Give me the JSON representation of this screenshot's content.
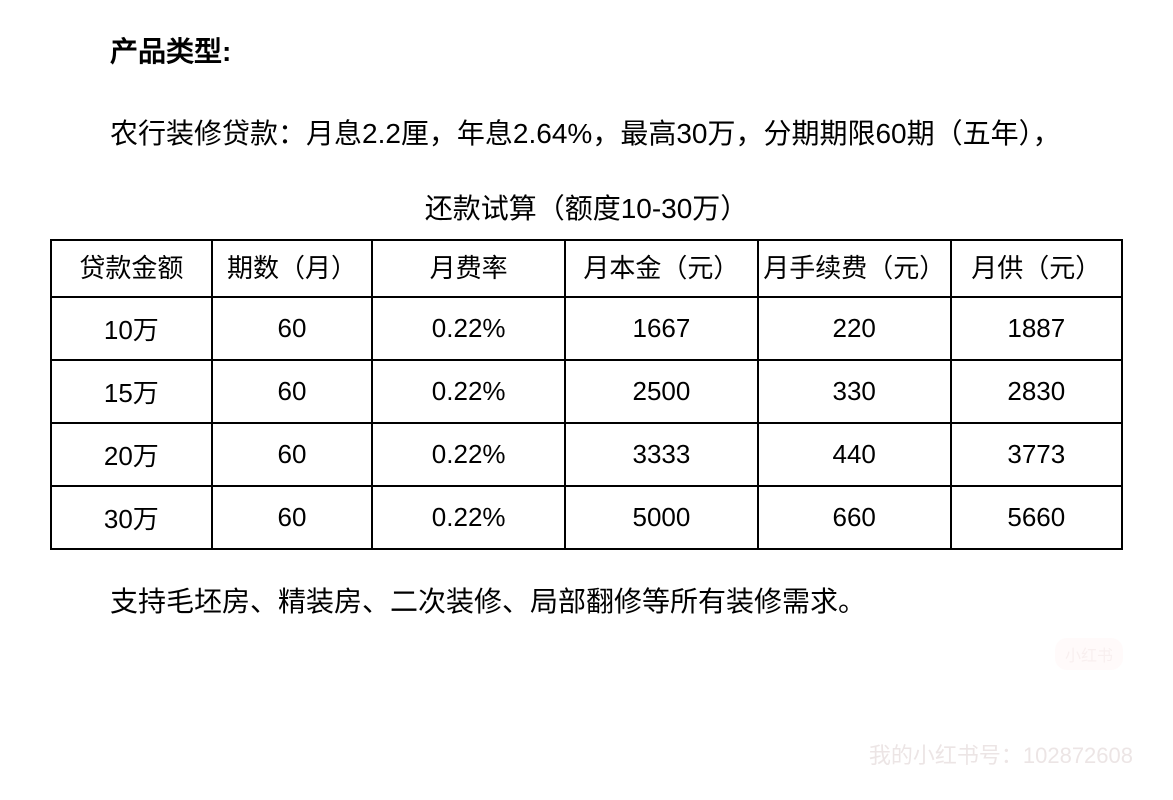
{
  "heading": "产品类型:",
  "body": "农行装修贷款：月息2.2厘，年息2.64%，最高30万，分期期限60期（五年），",
  "table": {
    "title": "还款试算（额度10-30万）",
    "columns": [
      "贷款金额",
      "期数（月）",
      "月费率",
      "月本金（元）",
      "月手续费（元）",
      "月供（元）"
    ],
    "rows": [
      [
        "10万",
        "60",
        "0.22%",
        "1667",
        "220",
        "1887"
      ],
      [
        "15万",
        "60",
        "0.22%",
        "2500",
        "330",
        "2830"
      ],
      [
        "20万",
        "60",
        "0.22%",
        "3333",
        "440",
        "3773"
      ],
      [
        "30万",
        "60",
        "0.22%",
        "5000",
        "660",
        "5660"
      ]
    ],
    "border_color": "#000000",
    "cell_fontsize": 26,
    "col_widths_pct": [
      15,
      15,
      18,
      18,
      18,
      16
    ]
  },
  "footer": "支持毛坯房、精装房、二次装修、局部翻修等所有装修需求。",
  "watermark_badge": "小红书",
  "watermark_text": "我的小红书号：102872608",
  "colors": {
    "background": "#ffffff",
    "text": "#000000",
    "watermark": "#e0d4d4"
  },
  "fontsize": {
    "heading": 28,
    "body": 28,
    "table_title": 28,
    "cell": 26
  }
}
